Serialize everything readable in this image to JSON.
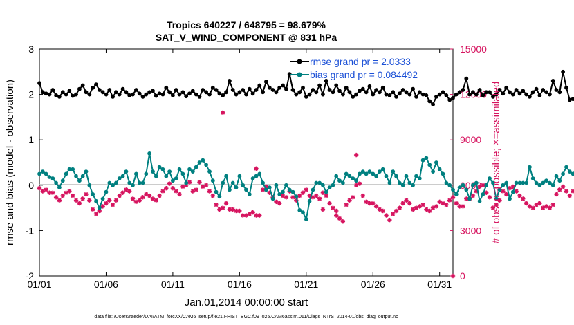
{
  "chart_data": {
    "type": "line",
    "title_line1": "Tropics 640227 / 648795 = 98.679%",
    "title_line2": "SAT_V_WIND_COMPONENT @ 831 hPa",
    "xlabel": "Jan.01,2014 00:00:00 start",
    "ylabel_left": "rmse and bias (model - observation)",
    "ylabel_right": "# of obs: o=possible; ×=assimilated",
    "footer": "data file: /Users/raeder/DAI/ATM_forcXX/CAM6_setup/f.e21.FHIST_BGC.f09_025.CAM6assim.011/Diags_NTrS_2014-01/obs_diag_output.nc",
    "x_ticks": [
      {
        "value": 1,
        "label": "01/01"
      },
      {
        "value": 6,
        "label": "01/06"
      },
      {
        "value": 11,
        "label": "01/11"
      },
      {
        "value": 16,
        "label": "01/16"
      },
      {
        "value": 21,
        "label": "01/21"
      },
      {
        "value": 26,
        "label": "01/26"
      },
      {
        "value": 31,
        "label": "01/31"
      }
    ],
    "y_left_ticks": [
      "3",
      "2",
      "1",
      "0",
      "-1",
      "-2"
    ],
    "y_right_ticks": [
      "15000",
      "12000",
      "9000",
      "6000",
      "3000",
      "0"
    ],
    "xlim": [
      1,
      32
    ],
    "ylim_left": [
      -2,
      3
    ],
    "ylim_right": [
      0,
      15000
    ],
    "colors": {
      "rmse": "#000000",
      "bias": "#008080",
      "obs": "#d6145f",
      "legend_text": "#1a4fd6",
      "zero_line": "#bbbbbb"
    },
    "legend": {
      "placement": "top-right",
      "entries": [
        "rmse grand pr = 2.0333",
        "bias grand pr = 0.084492"
      ]
    },
    "x_start": 1.0,
    "x_step": 0.25,
    "series": [
      {
        "name": "rmse grand pr = 2.0333",
        "axis": "left",
        "values": [
          2.25,
          2.05,
          2.02,
          2.0,
          2.1,
          1.98,
          1.95,
          2.05,
          2.0,
          2.08,
          1.97,
          2.0,
          2.12,
          2.2,
          2.05,
          2.0,
          2.15,
          2.22,
          2.1,
          2.05,
          2.0,
          2.1,
          1.95,
          2.05,
          2.0,
          2.12,
          2.05,
          1.98,
          2.0,
          2.1,
          2.02,
          1.95,
          2.0,
          2.05,
          2.08,
          1.97,
          2.02,
          2.0,
          2.15,
          2.05,
          1.98,
          2.1,
          2.0,
          2.05,
          1.96,
          2.02,
          2.08,
          2.0,
          1.95,
          2.1,
          2.05,
          2.0,
          2.15,
          2.1,
          2.02,
          1.98,
          2.05,
          2.3,
          2.1,
          2.0,
          2.05,
          2.1,
          2.0,
          2.12,
          2.02,
          2.1,
          2.2,
          2.05,
          2.28,
          2.15,
          2.1,
          2.05,
          2.15,
          2.2,
          2.12,
          2.45,
          2.1,
          2.0,
          2.05,
          2.15,
          1.95,
          2.0,
          2.1,
          2.05,
          2.2,
          2.0,
          2.3,
          2.1,
          2.05,
          2.2,
          2.08,
          2.0,
          2.15,
          2.05,
          1.95,
          2.0,
          2.08,
          2.12,
          2.05,
          2.18,
          2.0,
          2.1,
          2.05,
          2.15,
          2.0,
          1.98,
          2.05,
          1.95,
          2.02,
          2.1,
          2.05,
          2.0,
          2.12,
          1.95,
          2.05,
          2.0,
          1.98,
          1.85,
          1.78,
          1.95,
          2.0,
          2.05,
          1.98,
          1.88,
          1.92,
          2.0,
          2.05,
          2.1,
          2.35,
          2.0,
          2.05,
          2.0,
          2.1,
          1.98,
          2.05,
          2.05,
          1.95,
          2.0,
          2.1,
          2.02,
          2.15,
          2.05,
          2.0,
          2.1,
          2.02,
          2.08,
          2.0,
          1.95,
          2.05,
          2.12,
          1.98,
          2.1,
          2.05,
          2.0,
          2.3,
          2.1,
          2.05,
          2.5,
          2.15,
          1.88,
          1.9,
          1.95,
          2.0,
          1.9,
          1.8,
          1.78
        ]
      },
      {
        "name": "bias grand pr = 0.084492",
        "axis": "left",
        "values": [
          0.25,
          0.3,
          0.25,
          0.18,
          0.15,
          0.05,
          -0.05,
          0.1,
          0.25,
          0.35,
          0.35,
          0.2,
          0.1,
          0.2,
          0.3,
          0.0,
          -0.2,
          -0.35,
          -0.5,
          -0.3,
          -0.15,
          0.05,
          0.0,
          0.05,
          0.15,
          0.2,
          0.3,
          0.05,
          0.0,
          0.25,
          0.05,
          0.05,
          0.25,
          0.7,
          0.3,
          0.2,
          0.4,
          0.35,
          0.2,
          0.3,
          0.1,
          0.15,
          0.35,
          0.25,
          0.05,
          0.35,
          0.3,
          0.4,
          0.5,
          0.55,
          0.45,
          0.3,
          0.1,
          -0.15,
          -0.25,
          0.05,
          0.2,
          -0.1,
          0.05,
          -0.05,
          0.2,
          0.0,
          -0.1,
          -0.2,
          0.15,
          0.2,
          0.25,
          0.05,
          -0.1,
          -0.05,
          -0.3,
          0.0,
          -0.2,
          -0.15,
          0.0,
          -0.1,
          -0.15,
          -0.25,
          -0.55,
          -0.6,
          -0.75,
          -0.35,
          -0.1,
          0.05,
          0.05,
          0.0,
          -0.15,
          -0.05,
          0.0,
          0.2,
          0.1,
          0.05,
          0.25,
          0.2,
          0.15,
          0.1,
          0.25,
          0.3,
          0.25,
          0.3,
          0.25,
          0.2,
          0.3,
          0.35,
          0.2,
          0.05,
          0.3,
          0.2,
          0.05,
          0.0,
          0.2,
          0.05,
          0.0,
          0.2,
          0.15,
          0.55,
          0.6,
          0.45,
          0.3,
          0.5,
          0.35,
          0.25,
          0.05,
          0.0,
          -0.1,
          -0.2,
          -0.05,
          0.0,
          -0.1,
          -0.3,
          0.0,
          0.05,
          -0.35,
          -0.2,
          0.0,
          0.15,
          0.05,
          -0.3,
          -0.1,
          0.0,
          0.05,
          -0.3,
          -0.15,
          0.05,
          0.05,
          0.05,
          0.05,
          0.4,
          0.15,
          0.05,
          0.0,
          0.05,
          0.1,
          0.05,
          0.0,
          0.2,
          0.1,
          0.25,
          0.4,
          0.3,
          0.25,
          0.35,
          0.25,
          0.3,
          0.0,
          -0.05
        ]
      },
      {
        "name": "# of obs assimilated",
        "axis": "right",
        "values": [
          5800,
          5600,
          5700,
          5500,
          5500,
          5200,
          5000,
          5300,
          5500,
          5600,
          5300,
          5000,
          4800,
          5100,
          5400,
          5000,
          4400,
          4100,
          4300,
          4600,
          4800,
          5000,
          4700,
          5000,
          5300,
          5500,
          5700,
          5600,
          5100,
          4900,
          5000,
          5200,
          5400,
          5300,
          5100,
          5000,
          5300,
          5600,
          5800,
          6100,
          5800,
          5600,
          5400,
          5900,
          6000,
          6200,
          5600,
          5700,
          6200,
          5900,
          6000,
          5600,
          5300,
          4700,
          4400,
          4500,
          4800,
          4400,
          4400,
          4300,
          4300,
          4000,
          4000,
          4100,
          4200,
          4000,
          4000,
          5700,
          5900,
          5500,
          5200,
          4900,
          4800,
          5300,
          5200,
          5600,
          5200,
          5000,
          5300,
          5500,
          5700,
          5300,
          5200,
          5300,
          5100,
          5500,
          5300,
          4800,
          4500,
          4300,
          3800,
          3600,
          4700,
          5000,
          5200,
          6000,
          6100,
          5300,
          4900,
          4800,
          4800,
          4600,
          4400,
          4300,
          4000,
          3700,
          4100,
          4300,
          4500,
          4800,
          5000,
          4800,
          4400,
          4500,
          4600,
          4700,
          4400,
          4300,
          4500,
          4600,
          4900,
          4800,
          4700,
          5000,
          5200,
          4800,
          4600,
          4600,
          5100,
          5100,
          5300,
          5600,
          5900,
          6000,
          5500,
          5200,
          4500,
          4700,
          5000,
          5600,
          5400,
          5800,
          5900,
          5600,
          5300,
          5100,
          4800,
          4600,
          4500,
          4700,
          4800,
          4500,
          4600,
          4500,
          4700,
          5400,
          5700,
          5900,
          5600,
          5300,
          5600,
          5100,
          4900,
          4200,
          3600,
          3900,
          4100
        ]
      }
    ],
    "outliers": [
      {
        "x": 14.75,
        "value": 10800
      },
      {
        "x": 17.25,
        "value": 7100
      },
      {
        "x": 22.25,
        "value": 4400
      },
      {
        "x": 23.25,
        "value": 4000
      },
      {
        "x": 24.75,
        "value": 8000
      },
      {
        "x": 32.0,
        "value": 0
      }
    ]
  }
}
